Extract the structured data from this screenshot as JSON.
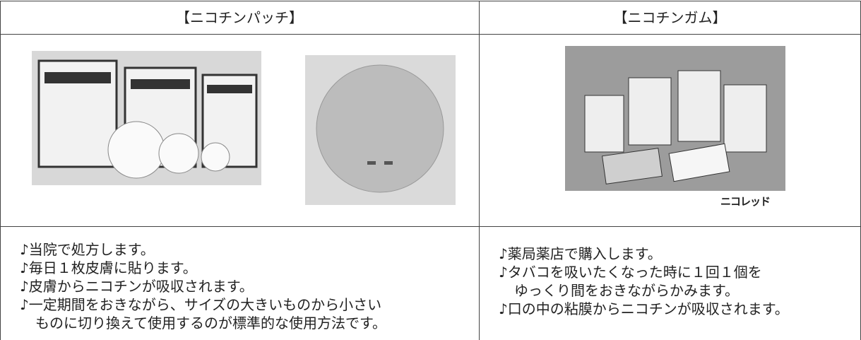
{
  "table": {
    "headers": [
      "【ニコチンパッチ】",
      "【ニコチンガム】"
    ],
    "image_caption": "ニコレッド",
    "left_items": [
      [
        "♪当院で処方します。"
      ],
      [
        "♪毎日１枚皮膚に貼ります。"
      ],
      [
        "♪皮膚からニコチンが吸収されます。"
      ],
      [
        "♪一定期間をおきながら、サイズの大きいものから小さい",
        "ものに切り換えて使用するのが標準的な使用方法です。"
      ]
    ],
    "right_items": [
      [
        "♪薬局薬店で購入します。"
      ],
      [
        "♪タバコを吸いたくなった時に１回１個を",
        "ゆっくり間をおきながらかみます。"
      ],
      [
        "♪口の中の粘膜からニコチンが吸収されます。"
      ]
    ]
  }
}
